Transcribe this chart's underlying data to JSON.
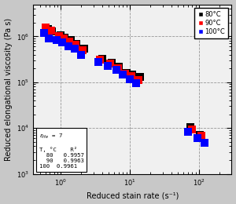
{
  "title": "",
  "xlabel": "Reduced stain rate (s⁻¹)",
  "ylabel": "Reduced elongational viscosity (Pa s)",
  "xlim": [
    0.4,
    300
  ],
  "ylim": [
    1000.0,
    5000000.0
  ],
  "legend_labels": [
    "80°C",
    "90°C",
    "100°C"
  ],
  "legend_colors": [
    "black",
    "red",
    "blue"
  ],
  "data_80": [
    [
      0.65,
      1450000
    ],
    [
      0.75,
      1300000
    ],
    [
      1.0,
      1050000
    ],
    [
      1.15,
      950000
    ],
    [
      1.4,
      820000
    ],
    [
      1.7,
      680000
    ],
    [
      2.2,
      540000
    ],
    [
      4.0,
      330000
    ],
    [
      5.5,
      265000
    ],
    [
      7.0,
      220000
    ],
    [
      9.0,
      160000
    ],
    [
      11.0,
      145000
    ],
    [
      14.0,
      130000
    ],
    [
      75.0,
      10500
    ],
    [
      105.0,
      7200
    ]
  ],
  "data_90": [
    [
      0.6,
      1550000
    ],
    [
      0.72,
      1350000
    ],
    [
      0.95,
      1000000
    ],
    [
      1.1,
      900000
    ],
    [
      1.35,
      780000
    ],
    [
      1.65,
      650000
    ],
    [
      2.1,
      490000
    ],
    [
      3.7,
      310000
    ],
    [
      5.2,
      255000
    ],
    [
      6.8,
      205000
    ],
    [
      8.5,
      155000
    ],
    [
      10.5,
      135000
    ],
    [
      13.5,
      110000
    ],
    [
      80.0,
      9500
    ],
    [
      110.0,
      6800
    ]
  ],
  "data_100": [
    [
      0.58,
      1200000
    ],
    [
      0.68,
      900000
    ],
    [
      0.88,
      830000
    ],
    [
      1.05,
      750000
    ],
    [
      1.3,
      620000
    ],
    [
      1.6,
      530000
    ],
    [
      2.0,
      390000
    ],
    [
      3.5,
      280000
    ],
    [
      4.8,
      230000
    ],
    [
      6.5,
      185000
    ],
    [
      8.0,
      145000
    ],
    [
      10.0,
      115000
    ],
    [
      12.5,
      95000
    ],
    [
      70.0,
      8200
    ],
    [
      95.0,
      6000
    ],
    [
      120.0,
      4800
    ]
  ],
  "plot_bg": "#f0f0f0",
  "fig_bg": "#c8c8c8",
  "marker_size": 42,
  "font_size": 7,
  "tick_font_size": 6
}
